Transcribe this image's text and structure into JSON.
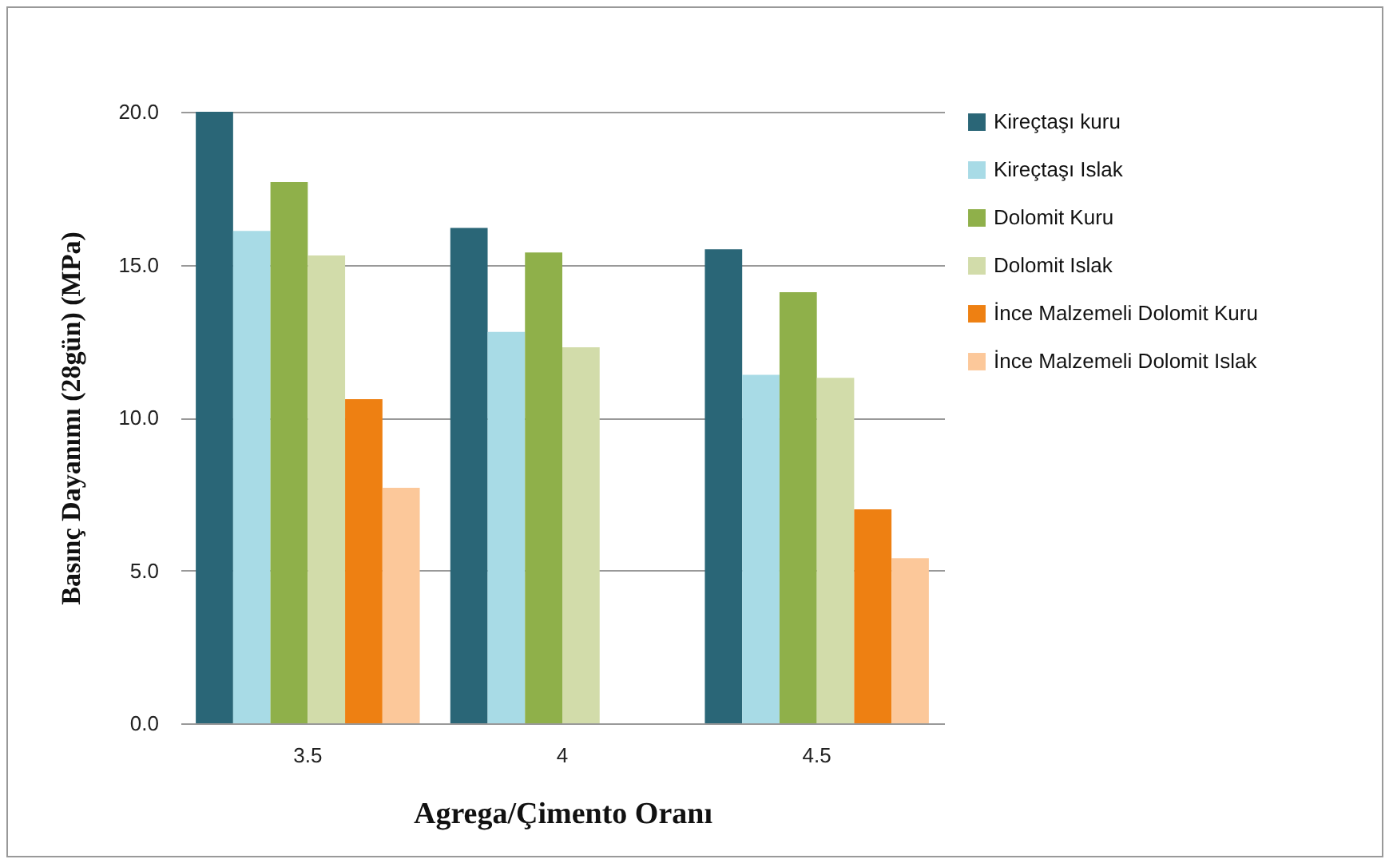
{
  "chart_data": {
    "type": "bar",
    "xlabel": "Agrega/Çimento Oranı",
    "ylabel": "Basınç Dayanımı (28gün) (MPa)",
    "categories": [
      "3.5",
      "4",
      "4.5"
    ],
    "series": [
      {
        "name": "Kireçtaşı kuru",
        "color": "#2a6677",
        "values": [
          20.0,
          16.2,
          15.5
        ]
      },
      {
        "name": "Kireçtaşı Islak",
        "color": "#a8dbe6",
        "values": [
          16.1,
          12.8,
          11.4
        ]
      },
      {
        "name": "Dolomit Kuru",
        "color": "#8fb04a",
        "values": [
          17.7,
          15.4,
          14.1
        ]
      },
      {
        "name": "Dolomit Islak",
        "color": "#d2dcaa",
        "values": [
          15.3,
          12.3,
          11.3
        ]
      },
      {
        "name": "İnce Malzemeli Dolomit Kuru",
        "color": "#ee8012",
        "values": [
          10.6,
          null,
          7.0
        ]
      },
      {
        "name": "İnce Malzemeli Dolomit Islak",
        "color": "#fcc89a",
        "values": [
          7.7,
          null,
          5.4
        ]
      }
    ],
    "ylim": [
      0,
      20
    ],
    "yticks": [
      {
        "value": 0,
        "label": "0.0"
      },
      {
        "value": 5,
        "label": "5.0"
      },
      {
        "value": 10,
        "label": "10.0"
      },
      {
        "value": 15,
        "label": "15.0"
      },
      {
        "value": 20,
        "label": "20.0"
      }
    ],
    "grid": "y",
    "legend": "right"
  }
}
